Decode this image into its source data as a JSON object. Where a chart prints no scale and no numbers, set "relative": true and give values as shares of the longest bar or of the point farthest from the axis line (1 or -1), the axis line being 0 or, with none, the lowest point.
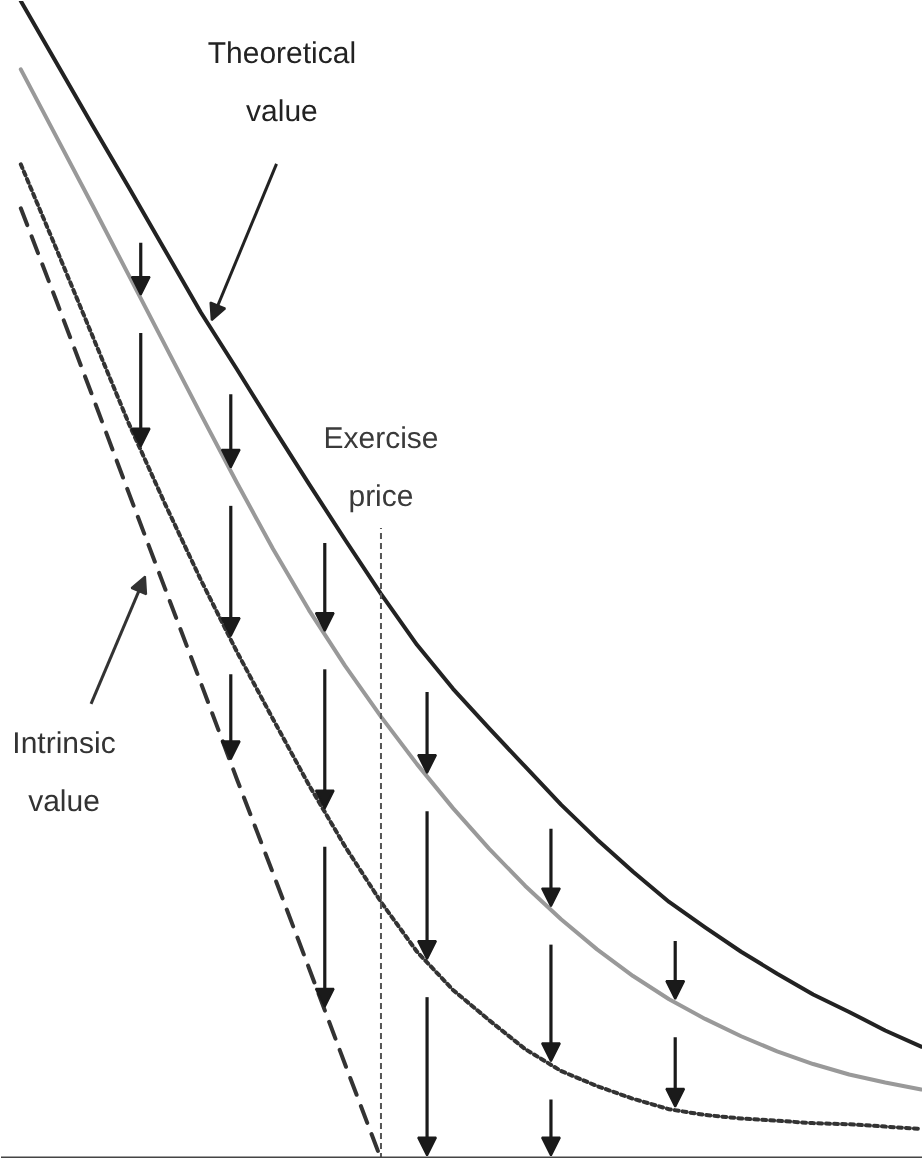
{
  "chart_data": {
    "type": "line",
    "relative": true,
    "categories": [
      null,
      null,
      null,
      null,
      null,
      null,
      null,
      null,
      null,
      null,
      null,
      null,
      null,
      null,
      null,
      null,
      null,
      null,
      null,
      null,
      null,
      null,
      null,
      null,
      null,
      null
    ],
    "series": [
      {
        "name": "Theoretical value",
        "color": "#222222",
        "line_style": "solid",
        "values": [
          1.0,
          0.946,
          0.892,
          0.839,
          0.785,
          0.731,
          0.682,
          0.632,
          0.583,
          0.535,
          0.488,
          0.444,
          0.406,
          0.372,
          0.339,
          0.306,
          0.276,
          0.248,
          0.222,
          0.2,
          0.179,
          0.16,
          0.142,
          0.127,
          0.111,
          0.097
        ]
      },
      {
        "color": "#999999",
        "line_style": "solid",
        "values": [
          0.941,
          0.882,
          0.823,
          0.763,
          0.703,
          0.643,
          0.584,
          0.527,
          0.474,
          0.426,
          0.382,
          0.341,
          0.303,
          0.268,
          0.236,
          0.207,
          0.181,
          0.158,
          0.138,
          0.121,
          0.106,
          0.093,
          0.082,
          0.073,
          0.066,
          0.06
        ]
      },
      {
        "color": "#333333",
        "line_style": "dotted",
        "values": [
          0.859,
          0.785,
          0.71,
          0.635,
          0.566,
          0.5,
          0.438,
          0.38,
          0.323,
          0.27,
          0.222,
          0.179,
          0.146,
          0.12,
          0.095,
          0.076,
          0.063,
          0.052,
          0.043,
          0.038,
          0.035,
          0.033,
          0.031,
          0.03,
          0.028,
          0.026
        ]
      },
      {
        "name": "Intrinsic value",
        "color": "#333333",
        "line_style": "dashed",
        "values": [
          0.821,
          0.74,
          0.658,
          0.575,
          0.493,
          0.411,
          0.328,
          0.247,
          0.165,
          0.082,
          0,
          0,
          0,
          0,
          0,
          0,
          0,
          0,
          0,
          0,
          0,
          0,
          0,
          0,
          0,
          0
        ]
      }
    ],
    "annotations": [
      "Exercise price"
    ]
  }
}
